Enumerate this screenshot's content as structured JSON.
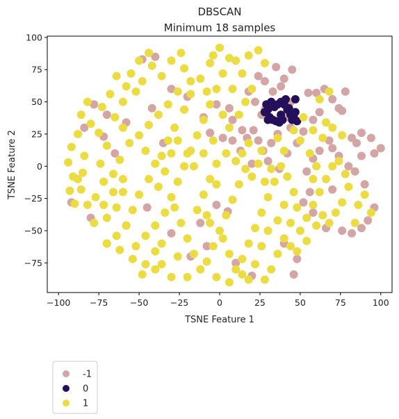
{
  "chart_data": {
    "type": "scatter",
    "title": "DBSCAN",
    "subtitle": "Minimum 18 samples",
    "xlabel": "TSNE Feature 1",
    "ylabel": "TSNE Feature 2",
    "xlim": [
      -107,
      107
    ],
    "ylim": [
      -98,
      101
    ],
    "xticks": [
      -100,
      -75,
      -50,
      -25,
      0,
      25,
      50,
      75,
      100
    ],
    "yticks": [
      -75,
      -50,
      -25,
      0,
      25,
      50,
      75,
      100
    ],
    "grid": false,
    "legend_position": "below-left",
    "series": [
      {
        "name": "-1",
        "color": "#d4a5a5",
        "points": [
          [
            -58,
            34
          ],
          [
            -72,
            23
          ],
          [
            -84,
            30
          ],
          [
            -92,
            -28
          ],
          [
            -40,
            85
          ],
          [
            -48,
            83
          ],
          [
            -42,
            45
          ],
          [
            -35,
            18
          ],
          [
            -20,
            54
          ],
          [
            -10,
            38
          ],
          [
            -2,
            48
          ],
          [
            6,
            45
          ],
          [
            8,
            36
          ],
          [
            14,
            28
          ],
          [
            17,
            22
          ],
          [
            21,
            28
          ],
          [
            24,
            20
          ],
          [
            27,
            12
          ],
          [
            32,
            18
          ],
          [
            36,
            25
          ],
          [
            28,
            44
          ],
          [
            22,
            50
          ],
          [
            18,
            58
          ],
          [
            24,
            70
          ],
          [
            28,
            66
          ],
          [
            38,
            62
          ],
          [
            33,
            58
          ],
          [
            42,
            38
          ],
          [
            44,
            30
          ],
          [
            48,
            18
          ],
          [
            52,
            27
          ],
          [
            55,
            57
          ],
          [
            60,
            57
          ],
          [
            65,
            60
          ],
          [
            70,
            52
          ],
          [
            74,
            45
          ],
          [
            78,
            58
          ],
          [
            76,
            43
          ],
          [
            82,
            22
          ],
          [
            85,
            18
          ],
          [
            88,
            26
          ],
          [
            94,
            22
          ],
          [
            96,
            10
          ],
          [
            100,
            14
          ],
          [
            88,
            8
          ],
          [
            84,
            -4
          ],
          [
            90,
            -14
          ],
          [
            80,
            0
          ],
          [
            74,
            8
          ],
          [
            70,
            14
          ],
          [
            68,
            20
          ],
          [
            62,
            12
          ],
          [
            58,
            6
          ],
          [
            54,
            -4
          ],
          [
            52,
            -28
          ],
          [
            58,
            -36
          ],
          [
            66,
            -48
          ],
          [
            76,
            -50
          ],
          [
            82,
            -52
          ],
          [
            88,
            -48
          ],
          [
            92,
            -42
          ],
          [
            96,
            -32
          ],
          [
            42,
            10
          ],
          [
            37,
            -2
          ],
          [
            30,
            4
          ],
          [
            20,
            2
          ],
          [
            13,
            12
          ],
          [
            8,
            20
          ],
          [
            2,
            22
          ],
          [
            -6,
            26
          ],
          [
            -2,
            -30
          ],
          [
            5,
            -35
          ],
          [
            -12,
            -44
          ],
          [
            -8,
            -62
          ],
          [
            -18,
            -70
          ],
          [
            -30,
            -52
          ],
          [
            -45,
            -32
          ],
          [
            -58,
            -46
          ],
          [
            -70,
            -60
          ],
          [
            -80,
            -40
          ],
          [
            -65,
            10
          ],
          [
            -30,
            60
          ],
          [
            40,
            -60
          ],
          [
            48,
            -72
          ],
          [
            46,
            -84
          ],
          [
            10,
            -75
          ],
          [
            20,
            -85
          ],
          [
            56,
            -20
          ],
          [
            70,
            -18
          ],
          [
            62,
            42
          ],
          [
            58,
            36
          ],
          [
            45,
            75
          ],
          [
            40,
            68
          ],
          [
            35,
            77
          ],
          [
            -78,
            48
          ],
          [
            -70,
            40
          ],
          [
            26,
            40
          ],
          [
            44,
            50
          ]
        ]
      },
      {
        "name": "0",
        "color": "#24105a",
        "points": [
          [
            29,
            48
          ],
          [
            30,
            44
          ],
          [
            28,
            42
          ],
          [
            31,
            38
          ],
          [
            33,
            36
          ],
          [
            35,
            35
          ],
          [
            37,
            34
          ],
          [
            39,
            36
          ],
          [
            36,
            48
          ],
          [
            38,
            50
          ],
          [
            40,
            48
          ],
          [
            42,
            44
          ],
          [
            44,
            40
          ],
          [
            46,
            38
          ],
          [
            47,
            42
          ],
          [
            45,
            36
          ],
          [
            32,
            50
          ],
          [
            34,
            46
          ],
          [
            38,
            40
          ],
          [
            47,
            52
          ],
          [
            41,
            52
          ],
          [
            30,
            36
          ],
          [
            48,
            35
          ],
          [
            43,
            45
          ]
        ]
      },
      {
        "name": "1",
        "color": "#ecdc44",
        "points": [
          [
            -92,
            15
          ],
          [
            -94,
            3
          ],
          [
            -91,
            -8
          ],
          [
            -93,
            -19
          ],
          [
            -90,
            -29
          ],
          [
            -86,
            -18
          ],
          [
            -85,
            -5
          ],
          [
            -84,
            8
          ],
          [
            -88,
            25
          ],
          [
            -80,
            33
          ],
          [
            -75,
            26
          ],
          [
            -70,
            16
          ],
          [
            -74,
            2
          ],
          [
            -72,
            -12
          ],
          [
            -77,
            -24
          ],
          [
            -82,
            -30
          ],
          [
            -78,
            -44
          ],
          [
            -70,
            -40
          ],
          [
            -64,
            -32
          ],
          [
            -60,
            -20
          ],
          [
            -66,
            -6
          ],
          [
            -62,
            5
          ],
          [
            -56,
            18
          ],
          [
            -60,
            30
          ],
          [
            -65,
            38
          ],
          [
            -73,
            46
          ],
          [
            -82,
            50
          ],
          [
            -68,
            56
          ],
          [
            -60,
            50
          ],
          [
            -52,
            58
          ],
          [
            -48,
            66
          ],
          [
            -55,
            72
          ],
          [
            -50,
            82
          ],
          [
            -42,
            78
          ],
          [
            -36,
            70
          ],
          [
            -30,
            82
          ],
          [
            -22,
            76
          ],
          [
            -18,
            66
          ],
          [
            -26,
            58
          ],
          [
            -32,
            48
          ],
          [
            -38,
            40
          ],
          [
            -44,
            32
          ],
          [
            -50,
            24
          ],
          [
            -46,
            12
          ],
          [
            -40,
            2
          ],
          [
            -44,
            -10
          ],
          [
            -50,
            -22
          ],
          [
            -54,
            -34
          ],
          [
            -58,
            -46
          ],
          [
            -64,
            -54
          ],
          [
            -70,
            -60
          ],
          [
            -62,
            -65
          ],
          [
            -52,
            -62
          ],
          [
            -46,
            -54
          ],
          [
            -40,
            -46
          ],
          [
            -34,
            -36
          ],
          [
            -30,
            -24
          ],
          [
            -26,
            -12
          ],
          [
            -22,
            0
          ],
          [
            -18,
            12
          ],
          [
            -14,
            24
          ],
          [
            -10,
            36
          ],
          [
            -6,
            48
          ],
          [
            -2,
            60
          ],
          [
            2,
            72
          ],
          [
            6,
            84
          ],
          [
            0,
            92
          ],
          [
            -6,
            80
          ],
          [
            -12,
            68
          ],
          [
            -18,
            56
          ],
          [
            -22,
            44
          ],
          [
            -28,
            30
          ],
          [
            -32,
            20
          ],
          [
            -36,
            8
          ],
          [
            -34,
            -4
          ],
          [
            -38,
            -16
          ],
          [
            -28,
            -32
          ],
          [
            -24,
            -44
          ],
          [
            -20,
            -56
          ],
          [
            -16,
            -68
          ],
          [
            -12,
            -80
          ],
          [
            -20,
            -86
          ],
          [
            -30,
            -86
          ],
          [
            -36,
            -76
          ],
          [
            -40,
            -66
          ],
          [
            -46,
            -76
          ],
          [
            -54,
            -72
          ],
          [
            -8,
            -74
          ],
          [
            -4,
            -62
          ],
          [
            0,
            -50
          ],
          [
            4,
            -38
          ],
          [
            8,
            -26
          ],
          [
            12,
            -14
          ],
          [
            16,
            -2
          ],
          [
            10,
            4
          ],
          [
            4,
            10
          ],
          [
            -2,
            2
          ],
          [
            -6,
            -10
          ],
          [
            -10,
            -22
          ],
          [
            -14,
            -34
          ],
          [
            -6,
            -44
          ],
          [
            2,
            -56
          ],
          [
            6,
            -68
          ],
          [
            10,
            -80
          ],
          [
            14,
            -72
          ],
          [
            18,
            -60
          ],
          [
            22,
            -48
          ],
          [
            26,
            -36
          ],
          [
            30,
            -24
          ],
          [
            34,
            -12
          ],
          [
            38,
            0
          ],
          [
            42,
            -8
          ],
          [
            46,
            -20
          ],
          [
            48,
            -32
          ],
          [
            44,
            -44
          ],
          [
            40,
            -56
          ],
          [
            36,
            -68
          ],
          [
            32,
            -80
          ],
          [
            28,
            -88
          ],
          [
            22,
            -76
          ],
          [
            18,
            -88
          ],
          [
            14,
            -84
          ],
          [
            26,
            -62
          ],
          [
            30,
            -50
          ],
          [
            36,
            -42
          ],
          [
            40,
            -30
          ],
          [
            44,
            -62
          ],
          [
            50,
            -50
          ],
          [
            54,
            -40
          ],
          [
            58,
            -30
          ],
          [
            62,
            -20
          ],
          [
            66,
            -10
          ],
          [
            70,
            0
          ],
          [
            74,
            4
          ],
          [
            78,
            -6
          ],
          [
            80,
            -16
          ],
          [
            76,
            -28
          ],
          [
            72,
            -36
          ],
          [
            68,
            -44
          ],
          [
            64,
            -38
          ],
          [
            60,
            -46
          ],
          [
            86,
            -30
          ],
          [
            90,
            -22
          ],
          [
            94,
            -36
          ],
          [
            84,
            -44
          ],
          [
            60,
            0
          ],
          [
            56,
            10
          ],
          [
            50,
            20
          ],
          [
            46,
            28
          ],
          [
            52,
            38
          ],
          [
            58,
            28
          ],
          [
            64,
            22
          ],
          [
            70,
            30
          ],
          [
            76,
            24
          ],
          [
            66,
            34
          ],
          [
            20,
            60
          ],
          [
            14,
            72
          ],
          [
            10,
            82
          ],
          [
            18,
            86
          ],
          [
            24,
            90
          ],
          [
            28,
            80
          ],
          [
            16,
            50
          ],
          [
            12,
            40
          ],
          [
            6,
            30
          ],
          [
            2,
            40
          ],
          [
            -4,
            20
          ],
          [
            -10,
            10
          ],
          [
            -16,
            0
          ],
          [
            -20,
            10
          ],
          [
            -26,
            20
          ],
          [
            -30,
            10
          ],
          [
            14,
            10
          ],
          [
            20,
            -8
          ],
          [
            24,
            2
          ],
          [
            28,
            -12
          ],
          [
            -88,
            -10
          ],
          [
            -86,
            40
          ],
          [
            -58,
            62
          ],
          [
            -64,
            70
          ],
          [
            -24,
            88
          ],
          [
            -4,
            86
          ],
          [
            8,
            60
          ],
          [
            -8,
            58
          ],
          [
            -44,
            88
          ],
          [
            -60,
            -10
          ],
          [
            -66,
            -20
          ],
          [
            -72,
            -30
          ],
          [
            -48,
            -84
          ],
          [
            -40,
            -80
          ],
          [
            -8,
            -38
          ],
          [
            -2,
            -14
          ],
          [
            18,
            18
          ],
          [
            32,
            -2
          ],
          [
            40,
            12
          ],
          [
            36,
            22
          ],
          [
            26,
            12
          ],
          [
            -36,
            -60
          ],
          [
            -26,
            -70
          ],
          [
            -2,
            -86
          ],
          [
            6,
            -90
          ],
          [
            54,
            -58
          ],
          [
            48,
            -66
          ],
          [
            58,
            -10
          ],
          [
            62,
            52
          ],
          [
            68,
            58
          ]
        ]
      }
    ]
  }
}
